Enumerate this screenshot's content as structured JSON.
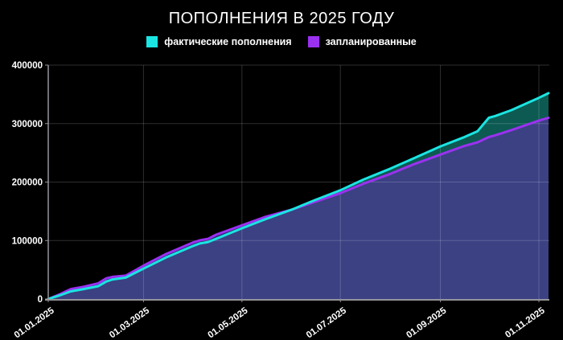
{
  "title": "ПОПОЛНЕНИЯ В 2025 ГОДУ",
  "legend": {
    "items": [
      {
        "label": "фактические пополнения",
        "color": "#1AE5E2"
      },
      {
        "label": "запланированные",
        "color": "#9B31F0"
      }
    ]
  },
  "colors": {
    "background": "#000000",
    "text": "#FFFFFF",
    "actual_line": "#1AE5E2",
    "planned_line": "#9B31F0",
    "fill_below": "#3B4183",
    "band_planned_above": "#2E2A6E",
    "band_actual_above": "#0D5A52",
    "grid": "rgba(255,255,255,0.18)",
    "axis": "#95959A"
  },
  "chart_data": {
    "type": "area",
    "title": "ПОПОЛНЕНИЯ В 2025 ГОДУ",
    "xlabel": "",
    "ylabel": "",
    "ylim": [
      0,
      400000
    ],
    "y_ticks": [
      0,
      100000,
      200000,
      300000,
      400000
    ],
    "y_tick_labels": [
      "0",
      "100000",
      "200000",
      "300000",
      "400000"
    ],
    "x_tick_labels": [
      "01.01.2025",
      "01.03.2025",
      "01.05.2025",
      "01.07.2025",
      "01.09.2025",
      "01.11.2025"
    ],
    "grid": true,
    "legend_position": "top",
    "dates": [
      "01.01",
      "08.01",
      "15.01",
      "23.01",
      "01.02",
      "06.02",
      "10.02",
      "18.02",
      "01.03",
      "15.03",
      "01.04",
      "05.04",
      "10.04",
      "15.04",
      "01.05",
      "15.05",
      "01.06",
      "15.06",
      "01.07",
      "15.07",
      "01.08",
      "15.08",
      "01.09",
      "15.09",
      "24.09",
      "01.10",
      "05.10",
      "15.10",
      "01.11",
      "07.11"
    ],
    "series": [
      {
        "name": "фактические пополнения",
        "values": [
          0,
          6000,
          13000,
          17000,
          22000,
          30000,
          33500,
          36500,
          52000,
          71000,
          91000,
          95000,
          97500,
          103000,
          121000,
          136000,
          153000,
          169000,
          186000,
          204000,
          223000,
          240000,
          261000,
          276000,
          287000,
          310000,
          313000,
          323000,
          344000,
          352000
        ]
      },
      {
        "name": "запланированные",
        "values": [
          0,
          8000,
          17000,
          21000,
          27000,
          35500,
          38000,
          40000,
          57000,
          77000,
          97000,
          100500,
          103000,
          110000,
          126000,
          140000,
          153000,
          166000,
          181000,
          197000,
          214000,
          230000,
          247000,
          261000,
          268000,
          277000,
          280000,
          289000,
          305000,
          310000
        ]
      }
    ]
  }
}
